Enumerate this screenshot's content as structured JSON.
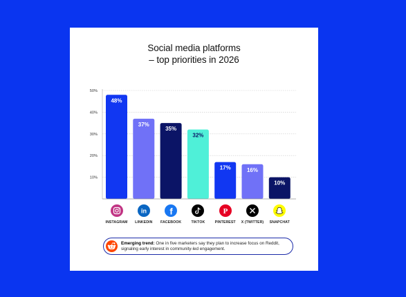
{
  "chart_data": {
    "type": "bar",
    "title_line1": "Social media platforms",
    "title_line2": "– top priorities in 2026",
    "categories": [
      "INSTAGRAM",
      "LINKEDIN",
      "FACEBOOK",
      "TIKTOK",
      "PINTEREST",
      "X (TWITTER)",
      "SNAPCHAT"
    ],
    "values": [
      48,
      37,
      35,
      32,
      17,
      16,
      10
    ],
    "value_labels": [
      "48%",
      "37%",
      "35%",
      "32%",
      "17%",
      "16%",
      "10%"
    ],
    "bar_colors": [
      "#1137f2",
      "#7071f7",
      "#0b1466",
      "#4ff0d8",
      "#1137f2",
      "#7071f7",
      "#0b1466"
    ],
    "yticks": [
      10,
      20,
      30,
      40,
      50
    ],
    "ytick_labels": [
      "10%",
      "20%",
      "30%",
      "40%",
      "50%"
    ],
    "ylim": [
      0,
      50
    ],
    "grid": true
  },
  "icons": [
    "instagram-icon",
    "linkedin-icon",
    "facebook-icon",
    "tiktok-icon",
    "pinterest-icon",
    "x-twitter-icon",
    "snapchat-icon"
  ],
  "icon_colors": [
    "#c13584",
    "#0a66c2",
    "#1877f2",
    "#000000",
    "#e60023",
    "#000000",
    "#fffc00"
  ],
  "note": {
    "heading": "Emerging trend:",
    "text": "One in five marketers say they plan to increase focus on Reddit, signaling early interest in community-led engagement.",
    "icon": "reddit-icon"
  },
  "colors": {
    "background": "#0a35f0",
    "card": "#ffffff",
    "note_border": "#1a2aa8"
  }
}
